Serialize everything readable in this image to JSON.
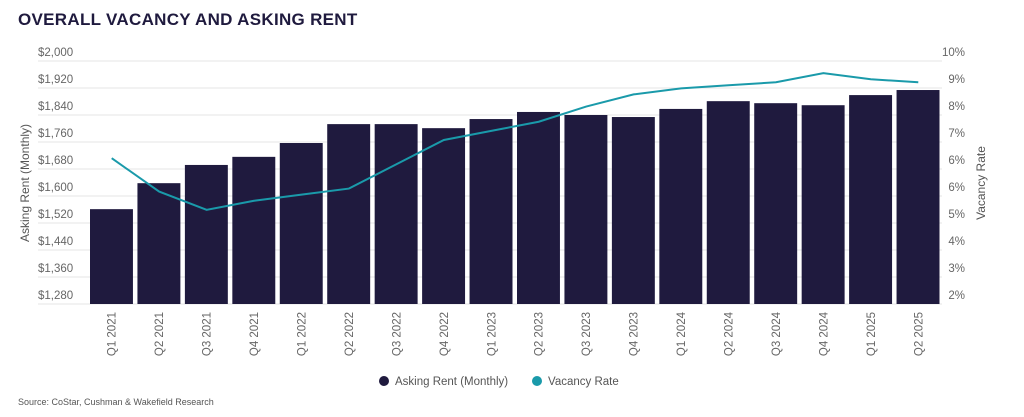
{
  "title": "OVERALL VACANCY AND ASKING RENT",
  "source": "Source: CoStar, Cushman & Wakefield Research",
  "chart_data": {
    "type": "bar",
    "categories": [
      "Q1 2021",
      "Q2 2021",
      "Q3 2021",
      "Q4 2021",
      "Q1 2022",
      "Q2 2022",
      "Q3 2022",
      "Q4 2022",
      "Q1 2023",
      "Q2 2023",
      "Q3 2023",
      "Q4 2023",
      "Q1 2024",
      "Q2 2024",
      "Q3 2024",
      "Q4 2024",
      "Q1 2025",
      "Q2 2025"
    ],
    "series": [
      {
        "name": "Asking Rent (Monthly)",
        "type": "bar",
        "axis": "left",
        "color": "#1f1a3e",
        "values": [
          1561,
          1638,
          1692,
          1716,
          1757,
          1813,
          1813,
          1801,
          1828,
          1849,
          1840,
          1834,
          1858,
          1881,
          1875,
          1869,
          1899,
          1914
        ]
      },
      {
        "name": "Vacancy Rate",
        "type": "line",
        "axis": "right",
        "color": "#1a9aaa",
        "values": [
          6.8,
          5.7,
          5.1,
          5.4,
          5.6,
          5.8,
          6.6,
          7.4,
          7.7,
          8.0,
          8.5,
          8.9,
          9.1,
          9.2,
          9.3,
          9.6,
          9.4,
          9.3
        ]
      }
    ],
    "y_left": {
      "label": "Asking Rent (Monthly)",
      "range": [
        1280,
        2000
      ],
      "ticks": [
        "$1,280",
        "$1,360",
        "$1,440",
        "$1,520",
        "$1,600",
        "$1,680",
        "$1,760",
        "$1,840",
        "$1,920",
        "$2,000"
      ]
    },
    "y_right": {
      "label": "Vacancy Rate",
      "range": [
        2,
        10
      ],
      "ticks": [
        "2%",
        "3%",
        "4%",
        "5%",
        "6%",
        "6%",
        "7%",
        "8%",
        "9%",
        "10%"
      ]
    },
    "grid": true,
    "legend": "bottom-center"
  }
}
